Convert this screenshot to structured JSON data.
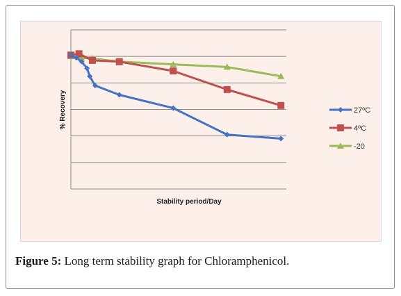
{
  "chart_data": {
    "type": "line",
    "title": "",
    "xlabel": "Stability period/Day",
    "ylabel": "% Recovery",
    "xlim": [
      0,
      40
    ],
    "ylim": [
      0,
      6
    ],
    "grid": true,
    "legend_position": "right",
    "series": [
      {
        "name": "27ºC",
        "color": "#4472c4",
        "marker": "diamond",
        "points": [
          [
            0,
            5.05
          ],
          [
            1,
            4.95
          ],
          [
            2,
            4.8
          ],
          [
            3,
            4.55
          ],
          [
            3.5,
            4.25
          ],
          [
            4.5,
            3.9
          ],
          [
            9,
            3.55
          ],
          [
            19,
            3.05
          ],
          [
            29,
            2.05
          ],
          [
            39,
            1.9
          ]
        ]
      },
      {
        "name": "4ºC",
        "color": "#c0504d",
        "marker": "square",
        "points": [
          [
            0,
            5.05
          ],
          [
            1.5,
            5.1
          ],
          [
            4,
            4.85
          ],
          [
            9,
            4.8
          ],
          [
            19,
            4.45
          ],
          [
            29,
            3.75
          ],
          [
            39,
            3.15
          ]
        ]
      },
      {
        "name": "-20",
        "color": "#9bbb59",
        "marker": "triangle",
        "points": [
          [
            0,
            5.0
          ],
          [
            2,
            4.95
          ],
          [
            4,
            4.92
          ],
          [
            9,
            4.8
          ],
          [
            19,
            4.7
          ],
          [
            29,
            4.6
          ],
          [
            39,
            4.25
          ]
        ]
      }
    ]
  },
  "caption": {
    "label": "Figure 5:",
    "text": " Long term stability graph for Chloramphenicol."
  }
}
